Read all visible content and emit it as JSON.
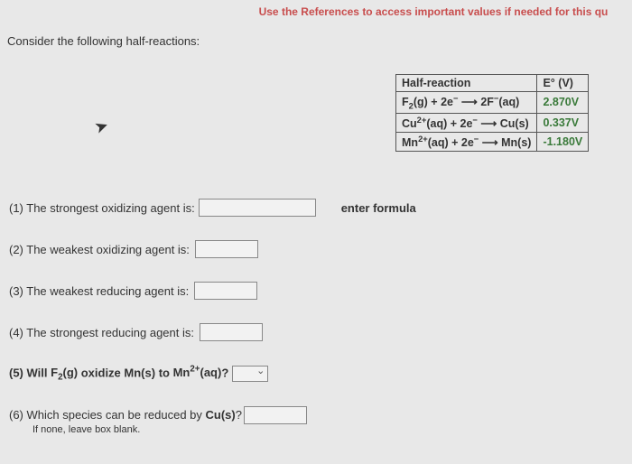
{
  "references_text": "Use the References to access important values if needed for this qu",
  "consider_text": "Consider the following half-reactions:",
  "table": {
    "header_left": "Half-reaction",
    "header_right": "E° (V)",
    "rows": [
      {
        "rxn_html": "F<sub>2</sub>(g) + 2e<sup>−</sup> ⟶ 2F<sup>−</sup>(aq)",
        "e": "2.870V"
      },
      {
        "rxn_html": "Cu<sup>2+</sup>(aq) + 2e<sup>−</sup> ⟶ Cu(s)",
        "e": "0.337V"
      },
      {
        "rxn_html": "Mn<sup>2+</sup>(aq) + 2e<sup>−</sup> ⟶ Mn(s)",
        "e": "-1.180V"
      }
    ]
  },
  "hint": "enter formula",
  "q1": "(1) The strongest oxidizing agent is:",
  "q2": "(2) The weakest oxidizing agent is:",
  "q3": "(3) The weakest reducing agent is:",
  "q4": "(4) The strongest reducing agent is:",
  "q5_pre": "(5) Will ",
  "q5_f2": "F<sub>2</sub>(g)",
  "q5_mid": " oxidize ",
  "q5_mn": "Mn(s)",
  "q5_to": " to ",
  "q5_mn2": "Mn<sup>2+</sup>(aq)",
  "q5_post": "?",
  "q6": "(6) Which species can be reduced by ",
  "q6_cu": "Cu(s)",
  "q6_post": "?",
  "q6_sub": "If none, leave box blank."
}
